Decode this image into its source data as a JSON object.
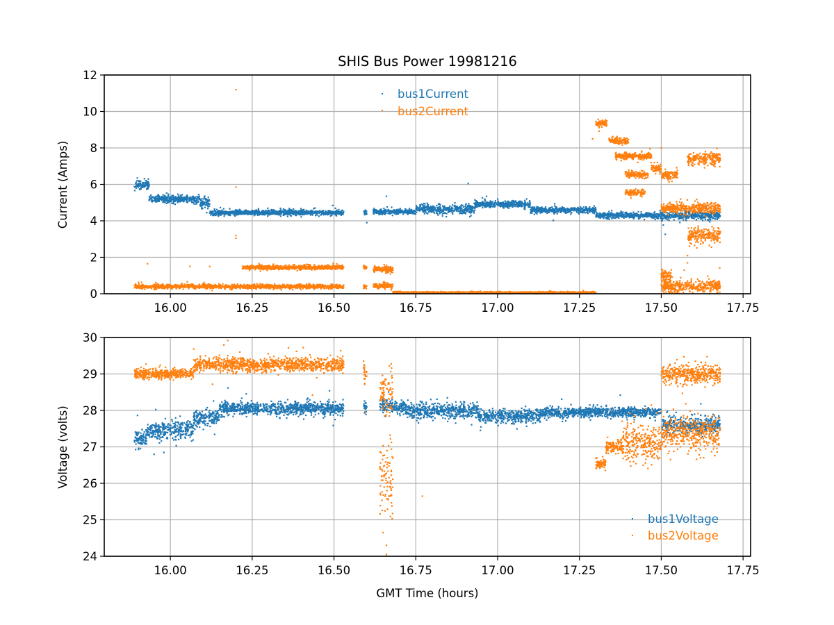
{
  "chart_data": [
    {
      "type": "scatter",
      "title": "SHIS Bus Power 19981216",
      "xlabel": "",
      "ylabel": "Current (Amps)",
      "xlim": [
        15.798,
        17.773
      ],
      "ylim": [
        0,
        12
      ],
      "grid": true,
      "x_ticks": [
        16.0,
        16.25,
        16.5,
        16.75,
        17.0,
        17.25,
        17.5,
        17.75
      ],
      "x_tick_labels": [
        "16.00",
        "16.25",
        "16.50",
        "16.75",
        "17.00",
        "17.25",
        "17.50",
        "17.75"
      ],
      "y_ticks": [
        0,
        2,
        4,
        6,
        8,
        10,
        12
      ],
      "y_tick_labels": [
        "0",
        "2",
        "4",
        "6",
        "8",
        "10",
        "12"
      ],
      "legend_position": "upper-center",
      "series": [
        {
          "name": "bus1Current",
          "color": "#1f77b4",
          "segments": [
            {
              "x": [
                15.89,
                15.935
              ],
              "y": 6.0,
              "spread": 0.22
            },
            {
              "x": [
                15.935,
                16.09
              ],
              "y": 5.2,
              "spread": 0.17
            },
            {
              "x": [
                16.09,
                16.12
              ],
              "y": 5.0,
              "spread": 0.35
            },
            {
              "x": [
                16.12,
                16.53
              ],
              "y": 4.45,
              "spread": 0.13
            },
            {
              "x": [
                16.59,
                16.6
              ],
              "y": 4.45,
              "spread": 0.15
            },
            {
              "x": [
                16.62,
                16.75
              ],
              "y": 4.5,
              "spread": 0.12
            },
            {
              "x": [
                16.75,
                16.93
              ],
              "y": 4.65,
              "spread": 0.22
            },
            {
              "x": [
                16.93,
                17.1
              ],
              "y": 4.9,
              "spread": 0.17
            },
            {
              "x": [
                17.1,
                17.3
              ],
              "y": 4.6,
              "spread": 0.14
            },
            {
              "x": [
                17.3,
                17.48
              ],
              "y": 4.3,
              "spread": 0.14
            },
            {
              "x": [
                17.48,
                17.68
              ],
              "y": 4.3,
              "spread": 0.22
            }
          ],
          "outliers": [
            [
              16.91,
              6.05
            ],
            [
              16.6,
              3.9
            ],
            [
              16.66,
              5.35
            ],
            [
              17.0,
              5.2
            ]
          ]
        },
        {
          "name": "bus2Current",
          "color": "#ff7f0e",
          "segments": [
            {
              "x": [
                15.89,
                16.53
              ],
              "y": 0.4,
              "spread": 0.1
            },
            {
              "x": [
                16.22,
                16.53
              ],
              "y": 1.45,
              "spread": 0.1
            },
            {
              "x": [
                16.59,
                16.6
              ],
              "y": 0.4,
              "spread": 0.1
            },
            {
              "x": [
                16.59,
                16.6
              ],
              "y": 1.45,
              "spread": 0.1
            },
            {
              "x": [
                16.62,
                16.68
              ],
              "y": 0.45,
              "spread": 0.12
            },
            {
              "x": [
                16.62,
                16.68
              ],
              "y": 1.35,
              "spread": 0.15
            },
            {
              "x": [
                16.68,
                17.3
              ],
              "y": 0.07,
              "spread": 0.04
            },
            {
              "x": [
                17.3,
                17.335
              ],
              "y": 9.35,
              "spread": 0.15
            },
            {
              "x": [
                17.34,
                17.4
              ],
              "y": 8.4,
              "spread": 0.15
            },
            {
              "x": [
                17.36,
                17.47
              ],
              "y": 7.55,
              "spread": 0.15
            },
            {
              "x": [
                17.39,
                17.46
              ],
              "y": 6.55,
              "spread": 0.15
            },
            {
              "x": [
                17.39,
                17.45
              ],
              "y": 5.55,
              "spread": 0.15
            },
            {
              "x": [
                17.47,
                17.5
              ],
              "y": 6.9,
              "spread": 0.2
            },
            {
              "x": [
                17.5,
                17.55
              ],
              "y": 6.5,
              "spread": 0.2
            },
            {
              "x": [
                17.5,
                17.68
              ],
              "y": 4.7,
              "spread": 0.25
            },
            {
              "x": [
                17.58,
                17.68
              ],
              "y": 7.4,
              "spread": 0.3
            },
            {
              "x": [
                17.58,
                17.68
              ],
              "y": 3.2,
              "spread": 0.4
            },
            {
              "x": [
                17.5,
                17.68
              ],
              "y": 0.4,
              "spread": 0.3
            },
            {
              "x": [
                17.5,
                17.53
              ],
              "y": 1.0,
              "spread": 0.3
            }
          ],
          "outliers": [
            [
              16.2,
              11.2
            ],
            [
              16.2,
              5.85
            ],
            [
              16.2,
              3.2
            ],
            [
              16.2,
              3.05
            ],
            [
              15.93,
              1.65
            ],
            [
              16.06,
              1.5
            ],
            [
              16.12,
              1.5
            ],
            [
              17.29,
              8.5
            ],
            [
              17.5,
              8.0
            ],
            [
              17.58,
              2.1
            ],
            [
              17.58,
              1.7
            ],
            [
              17.57,
              1.3
            ]
          ]
        }
      ]
    },
    {
      "type": "scatter",
      "title": "",
      "xlabel": "GMT Time (hours)",
      "ylabel": "Voltage (volts)",
      "xlim": [
        15.798,
        17.773
      ],
      "ylim": [
        24,
        30
      ],
      "grid": true,
      "x_ticks": [
        16.0,
        16.25,
        16.5,
        16.75,
        17.0,
        17.25,
        17.5,
        17.75
      ],
      "x_tick_labels": [
        "16.00",
        "16.25",
        "16.50",
        "16.75",
        "17.00",
        "17.25",
        "17.50",
        "17.75"
      ],
      "y_ticks": [
        24,
        25,
        26,
        27,
        28,
        29,
        30
      ],
      "y_tick_labels": [
        "24",
        "25",
        "26",
        "27",
        "28",
        "29",
        "30"
      ],
      "legend_position": "lower-right",
      "series": [
        {
          "name": "bus1Voltage",
          "color": "#1f77b4",
          "segments": [
            {
              "x": [
                15.89,
                15.93
              ],
              "y": 27.2,
              "spread": 0.22
            },
            {
              "x": [
                15.93,
                16.07
              ],
              "y": 27.45,
              "spread": 0.22
            },
            {
              "x": [
                16.07,
                16.15
              ],
              "y": 27.8,
              "spread": 0.2
            },
            {
              "x": [
                16.15,
                16.53
              ],
              "y": 28.05,
              "spread": 0.17
            },
            {
              "x": [
                16.59,
                16.6
              ],
              "y": 28.1,
              "spread": 0.15
            },
            {
              "x": [
                16.64,
                16.72
              ],
              "y": 28.1,
              "spread": 0.17
            },
            {
              "x": [
                16.72,
                16.94
              ],
              "y": 28.0,
              "spread": 0.2
            },
            {
              "x": [
                16.94,
                17.13
              ],
              "y": 27.85,
              "spread": 0.17
            },
            {
              "x": [
                17.13,
                17.5
              ],
              "y": 27.95,
              "spread": 0.12
            },
            {
              "x": [
                17.5,
                17.68
              ],
              "y": 27.6,
              "spread": 0.22
            }
          ],
          "outliers": [
            [
              15.95,
              26.8
            ],
            [
              15.98,
              26.85
            ]
          ]
        },
        {
          "name": "bus2Voltage",
          "color": "#ff7f0e",
          "segments": [
            {
              "x": [
                15.89,
                16.07
              ],
              "y": 29.0,
              "spread": 0.12
            },
            {
              "x": [
                16.07,
                16.53
              ],
              "y": 29.25,
              "spread": 0.17
            },
            {
              "x": [
                16.59,
                16.6
              ],
              "y": 29.1,
              "spread": 0.35
            },
            {
              "x": [
                16.64,
                16.68
              ],
              "y": 28.5,
              "spread": 0.6
            },
            {
              "x": [
                16.64,
                16.68
              ],
              "y": 26.0,
              "spread": 1.0
            },
            {
              "x": [
                17.3,
                17.33
              ],
              "y": 26.55,
              "spread": 0.12
            },
            {
              "x": [
                17.33,
                17.38
              ],
              "y": 27.0,
              "spread": 0.17
            },
            {
              "x": [
                17.38,
                17.5
              ],
              "y": 27.1,
              "spread": 0.45
            },
            {
              "x": [
                17.5,
                17.68
              ],
              "y": 29.0,
              "spread": 0.25
            },
            {
              "x": [
                17.5,
                17.68
              ],
              "y": 27.4,
              "spread": 0.4
            }
          ],
          "outliers": [
            [
              16.66,
              24.3
            ],
            [
              16.66,
              24.05
            ],
            [
              16.65,
              24.65
            ],
            [
              16.77,
              25.65
            ]
          ]
        }
      ]
    }
  ]
}
